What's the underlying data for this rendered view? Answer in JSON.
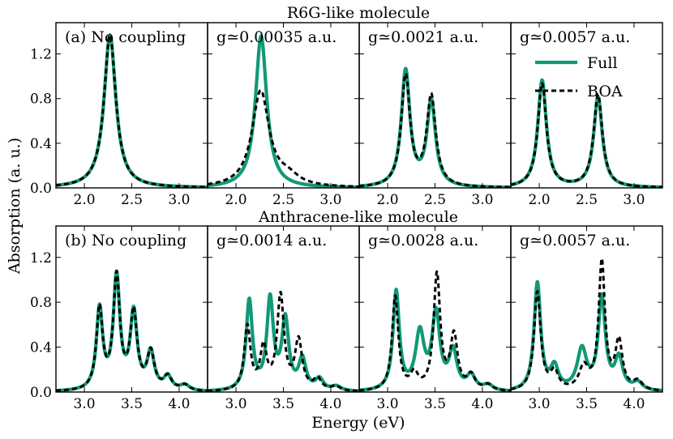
{
  "chart_data": {
    "type": "line",
    "xlabel": "Energy (eV)",
    "ylabel": "Absorption (a. u.)",
    "legend": {
      "location": "top-right of row 1, panel 4",
      "entries": [
        "Full",
        "BOA"
      ]
    },
    "colors": {
      "full": "#119977",
      "boa": "#000000"
    },
    "rows": [
      {
        "title": "R6G-like molecule",
        "xlim": [
          1.7,
          3.3
        ],
        "ylim": [
          0,
          1.48
        ],
        "xticks": [
          "2.0",
          "2.5",
          "3.0"
        ],
        "xtick_values": [
          2.0,
          2.5,
          3.0
        ],
        "yticks": [
          "0.0",
          "0.4",
          "0.8",
          "1.2"
        ],
        "ytick_values": [
          0.0,
          0.4,
          0.8,
          1.2
        ],
        "panels": [
          {
            "label": "(a) No coupling",
            "full": [
              {
                "center": 2.27,
                "height": 1.37,
                "width": 0.075
              }
            ],
            "boa": [
              {
                "center": 2.27,
                "height": 1.37,
                "width": 0.075
              }
            ]
          },
          {
            "label": "g≃0.00035 a.u.",
            "full": [
              {
                "center": 2.265,
                "height": 1.36,
                "width": 0.072
              }
            ],
            "boa": [
              {
                "center": 2.26,
                "height": 0.86,
                "width": 0.11
              },
              {
                "center": 2.55,
                "height": 0.08,
                "width": 0.14
              }
            ]
          },
          {
            "label": "g≃0.0021 a.u.",
            "full": [
              {
                "center": 2.19,
                "height": 1.04,
                "width": 0.055
              },
              {
                "center": 2.46,
                "height": 0.76,
                "width": 0.055
              }
            ],
            "boa": [
              {
                "center": 2.19,
                "height": 0.99,
                "width": 0.055
              },
              {
                "center": 2.46,
                "height": 0.81,
                "width": 0.058
              }
            ]
          },
          {
            "label": "g≃0.0057 a.u.",
            "full": [
              {
                "center": 2.03,
                "height": 0.96,
                "width": 0.055
              },
              {
                "center": 2.62,
                "height": 0.81,
                "width": 0.055
              }
            ],
            "boa": [
              {
                "center": 2.03,
                "height": 0.93,
                "width": 0.055
              },
              {
                "center": 2.62,
                "height": 0.83,
                "width": 0.056
              }
            ]
          }
        ]
      },
      {
        "title": "Anthracene-like molecule",
        "xlim": [
          2.7,
          4.3
        ],
        "ylim": [
          0,
          1.48
        ],
        "xticks": [
          "3.0",
          "3.5",
          "4.0"
        ],
        "xtick_values": [
          3.0,
          3.5,
          4.0
        ],
        "yticks": [
          "0.0",
          "0.4",
          "0.8",
          "1.2"
        ],
        "ytick_values": [
          0.0,
          0.4,
          0.8,
          1.2
        ],
        "panels": [
          {
            "label": "(b) No coupling",
            "full": [
              {
                "center": 3.16,
                "height": 0.72,
                "width": 0.04
              },
              {
                "center": 3.34,
                "height": 1.0,
                "width": 0.042
              },
              {
                "center": 3.52,
                "height": 0.68,
                "width": 0.044
              },
              {
                "center": 3.7,
                "height": 0.33,
                "width": 0.046
              },
              {
                "center": 3.88,
                "height": 0.12,
                "width": 0.05
              },
              {
                "center": 4.06,
                "height": 0.05,
                "width": 0.06
              }
            ],
            "boa": [
              {
                "center": 3.16,
                "height": 0.72,
                "width": 0.04
              },
              {
                "center": 3.34,
                "height": 1.0,
                "width": 0.042
              },
              {
                "center": 3.52,
                "height": 0.68,
                "width": 0.044
              },
              {
                "center": 3.7,
                "height": 0.33,
                "width": 0.046
              },
              {
                "center": 3.88,
                "height": 0.12,
                "width": 0.05
              },
              {
                "center": 4.06,
                "height": 0.05,
                "width": 0.06
              }
            ]
          },
          {
            "label": "g≃0.0014 a.u.",
            "full": [
              {
                "center": 3.14,
                "height": 0.8,
                "width": 0.04
              },
              {
                "center": 3.36,
                "height": 0.8,
                "width": 0.042
              },
              {
                "center": 3.52,
                "height": 0.62,
                "width": 0.044
              },
              {
                "center": 3.7,
                "height": 0.27,
                "width": 0.046
              },
              {
                "center": 3.88,
                "height": 0.1,
                "width": 0.05
              },
              {
                "center": 4.06,
                "height": 0.04,
                "width": 0.06
              }
            ],
            "boa": [
              {
                "center": 3.12,
                "height": 0.57,
                "width": 0.04
              },
              {
                "center": 3.29,
                "height": 0.37,
                "width": 0.042
              },
              {
                "center": 3.47,
                "height": 0.84,
                "width": 0.044
              },
              {
                "center": 3.66,
                "height": 0.44,
                "width": 0.046
              },
              {
                "center": 3.86,
                "height": 0.1,
                "width": 0.05
              },
              {
                "center": 4.05,
                "height": 0.04,
                "width": 0.06
              }
            ]
          },
          {
            "label": "g≃0.0028 a.u.",
            "full": [
              {
                "center": 3.09,
                "height": 0.88,
                "width": 0.04
              },
              {
                "center": 3.34,
                "height": 0.5,
                "width": 0.055
              },
              {
                "center": 3.51,
                "height": 0.67,
                "width": 0.05
              },
              {
                "center": 3.69,
                "height": 0.34,
                "width": 0.05
              },
              {
                "center": 3.88,
                "height": 0.13,
                "width": 0.055
              },
              {
                "center": 4.06,
                "height": 0.05,
                "width": 0.06
              }
            ],
            "boa": [
              {
                "center": 3.08,
                "height": 0.84,
                "width": 0.04
              },
              {
                "center": 3.28,
                "height": 0.14,
                "width": 0.05
              },
              {
                "center": 3.52,
                "height": 1.03,
                "width": 0.042
              },
              {
                "center": 3.7,
                "height": 0.48,
                "width": 0.046
              },
              {
                "center": 3.88,
                "height": 0.13,
                "width": 0.05
              },
              {
                "center": 4.06,
                "height": 0.05,
                "width": 0.06
              }
            ]
          },
          {
            "label": "g≃0.0057 a.u.",
            "full": [
              {
                "center": 2.98,
                "height": 0.96,
                "width": 0.042
              },
              {
                "center": 3.16,
                "height": 0.2,
                "width": 0.05
              },
              {
                "center": 3.45,
                "height": 0.36,
                "width": 0.06
              },
              {
                "center": 3.66,
                "height": 0.82,
                "width": 0.045
              },
              {
                "center": 3.84,
                "height": 0.28,
                "width": 0.05
              },
              {
                "center": 4.04,
                "height": 0.07,
                "width": 0.06
              }
            ],
            "boa": [
              {
                "center": 2.98,
                "height": 0.88,
                "width": 0.042
              },
              {
                "center": 3.16,
                "height": 0.16,
                "width": 0.05
              },
              {
                "center": 3.47,
                "height": 0.2,
                "width": 0.06
              },
              {
                "center": 3.66,
                "height": 1.14,
                "width": 0.04
              },
              {
                "center": 3.84,
                "height": 0.43,
                "width": 0.046
              },
              {
                "center": 4.04,
                "height": 0.08,
                "width": 0.06
              }
            ]
          }
        ]
      }
    ]
  }
}
